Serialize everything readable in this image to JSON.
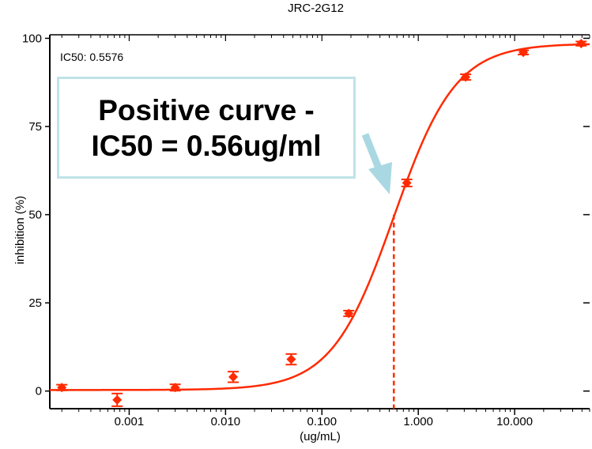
{
  "chart_data": {
    "type": "scatter",
    "title": "JRC-2G12",
    "xlabel": "(ug/mL)",
    "ylabel": "inhibition (%)",
    "xscale": "log",
    "xlim": [
      0.00015,
      60
    ],
    "ylim": [
      -5,
      101
    ],
    "xticks": [
      0.001,
      0.01,
      0.1,
      1,
      10
    ],
    "xtick_labels": [
      "0.001",
      "0.010",
      "0.100",
      "1.000",
      "10.000"
    ],
    "yticks": [
      0,
      25,
      50,
      75,
      100
    ],
    "ytick_labels": [
      "0",
      "25",
      "50",
      "75",
      "100"
    ],
    "grid": false,
    "series": [
      {
        "type": "scatter",
        "x": [
          0.0002,
          0.00075,
          0.003,
          0.012,
          0.048,
          0.19,
          0.76,
          3.1,
          12.3,
          49
        ],
        "y": [
          1,
          -2.5,
          1,
          4,
          9,
          22,
          59,
          89,
          96,
          98.5
        ],
        "error": [
          0.8,
          1.8,
          0.9,
          1.5,
          1.5,
          0.8,
          1,
          0.8,
          0.6,
          0.6
        ],
        "color": "#ff2a00"
      }
    ],
    "fit": {
      "type": "line",
      "model": "4-parameter logistic",
      "bottom": 0.3,
      "top": 98.5,
      "ic50": 0.5576,
      "hill": 1.35,
      "color": "#ff2a00"
    },
    "reference_line": {
      "x": 0.5576,
      "y": 50,
      "style": "dashed",
      "color": "#ff2a00"
    },
    "annotations": {
      "ic50_text": "IC50: 0.5576",
      "callout_line1": "Positive curve -",
      "callout_line2": "IC50 = 0.56ug/ml",
      "arrow_color": "#a9d8e2"
    }
  }
}
